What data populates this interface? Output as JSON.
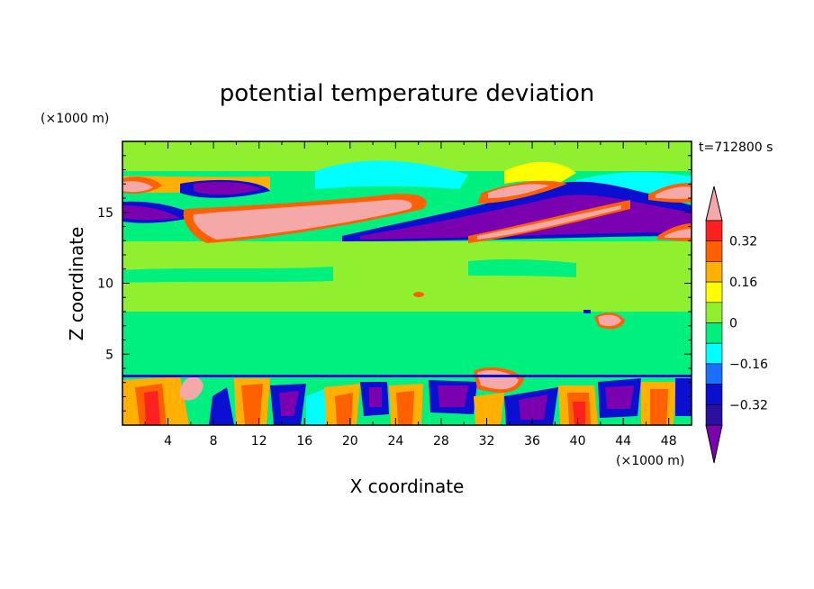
{
  "chart_data": {
    "type": "heatmap",
    "title": "potential temperature deviation",
    "xlabel": "X coordinate",
    "ylabel": "Z coordinate",
    "x_unit": "(×1000 m)",
    "y_unit": "(×1000 m)",
    "time_label": "t=712800 s",
    "xlim": [
      0,
      50
    ],
    "ylim": [
      0,
      20
    ],
    "x_ticks": [
      4,
      8,
      12,
      16,
      20,
      24,
      28,
      32,
      36,
      40,
      44,
      48
    ],
    "y_ticks": [
      5,
      10,
      15
    ],
    "colorbar": {
      "labels": [
        "0.32",
        "0.16",
        "0",
        "−0.16",
        "−0.32"
      ],
      "label_values": [
        0.32,
        0.16,
        0,
        -0.16,
        -0.32
      ],
      "levels": [
        -0.4,
        -0.32,
        -0.24,
        -0.16,
        -0.08,
        0,
        0.08,
        0.16,
        0.24,
        0.32,
        0.4
      ],
      "colors": [
        "#7a00b0",
        "#2d0fa0",
        "#0a0fd0",
        "#1a70ff",
        "#00ffff",
        "#00f080",
        "#90f030",
        "#ffff00",
        "#ffb000",
        "#ff6000",
        "#ff2020",
        "#f4a8a8"
      ],
      "extend": "both"
    },
    "bands": [
      {
        "z": [
          17.0,
          20.0
        ],
        "dominant": 0.02,
        "color": "#90f030"
      },
      {
        "z": [
          13.0,
          17.0
        ],
        "dominant": "mixed",
        "features": [
          "positive band (~+0.45) rising from x≈10 to x≈48",
          "negative band (~-0.45) from x≈24 to x≈50"
        ]
      },
      {
        "z": [
          8.0,
          13.0
        ],
        "dominant": 0.02,
        "color": "#90f030"
      },
      {
        "z": [
          3.5,
          8.0
        ],
        "dominant": -0.02,
        "color": "#00f080"
      },
      {
        "z": [
          0.0,
          3.5
        ],
        "dominant": "mixed",
        "features": [
          "convective cells alternating between -0.45 and +0.35"
        ]
      }
    ]
  }
}
